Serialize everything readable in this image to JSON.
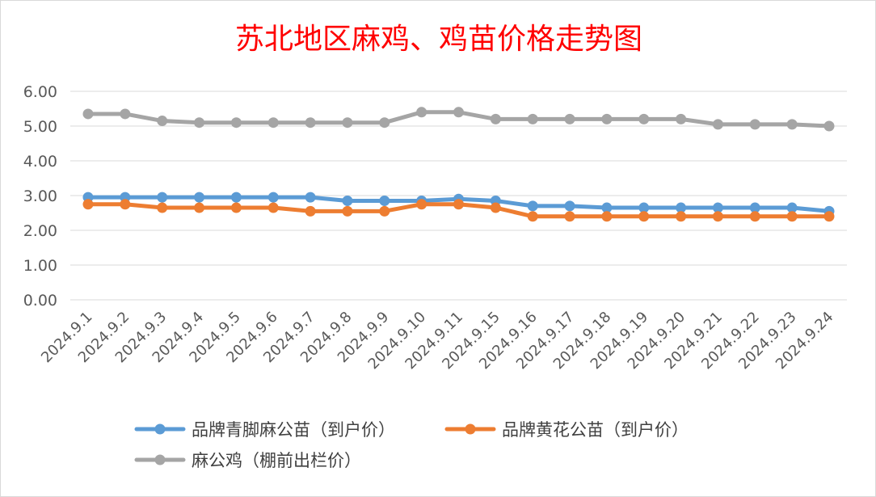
{
  "chart_data": {
    "type": "line",
    "title": "苏北地区麻鸡、鸡苗价格走势图",
    "title_color": "#ff0000",
    "xlabel": "",
    "ylabel": "",
    "ylim": [
      0,
      6
    ],
    "y_ticks": [
      "0.00",
      "1.00",
      "2.00",
      "3.00",
      "4.00",
      "5.00",
      "6.00"
    ],
    "grid": true,
    "legend_position": "bottom",
    "categories": [
      "2024.9.1",
      "2024.9.2",
      "2024.9.3",
      "2024.9.4",
      "2024.9.5",
      "2024.9.6",
      "2024.9.7",
      "2024.9.8",
      "2024.9.9",
      "2024.9.10",
      "2024.9.11",
      "2024.9.15",
      "2024.9.16",
      "2024.9.17",
      "2024.9.18",
      "2024.9.19",
      "2024.9.20",
      "2024.9.21",
      "2024.9.22",
      "2024.9.23",
      "2024.9.24"
    ],
    "series": [
      {
        "name": "品牌青脚麻公苗（到户价）",
        "color": "#5b9bd5",
        "values": [
          2.95,
          2.95,
          2.95,
          2.95,
          2.95,
          2.95,
          2.95,
          2.85,
          2.85,
          2.85,
          2.9,
          2.85,
          2.7,
          2.7,
          2.65,
          2.65,
          2.65,
          2.65,
          2.65,
          2.65,
          2.55
        ]
      },
      {
        "name": "品牌黄花公苗（到户价）",
        "color": "#ed7d31",
        "values": [
          2.75,
          2.75,
          2.65,
          2.65,
          2.65,
          2.65,
          2.55,
          2.55,
          2.55,
          2.75,
          2.75,
          2.65,
          2.4,
          2.4,
          2.4,
          2.4,
          2.4,
          2.4,
          2.4,
          2.4,
          2.4
        ]
      },
      {
        "name": "麻公鸡（棚前出栏价）",
        "color": "#a5a5a5",
        "values": [
          5.35,
          5.35,
          5.15,
          5.1,
          5.1,
          5.1,
          5.1,
          5.1,
          5.1,
          5.4,
          5.4,
          5.2,
          5.2,
          5.2,
          5.2,
          5.2,
          5.2,
          5.05,
          5.05,
          5.05,
          5.0
        ]
      }
    ]
  }
}
